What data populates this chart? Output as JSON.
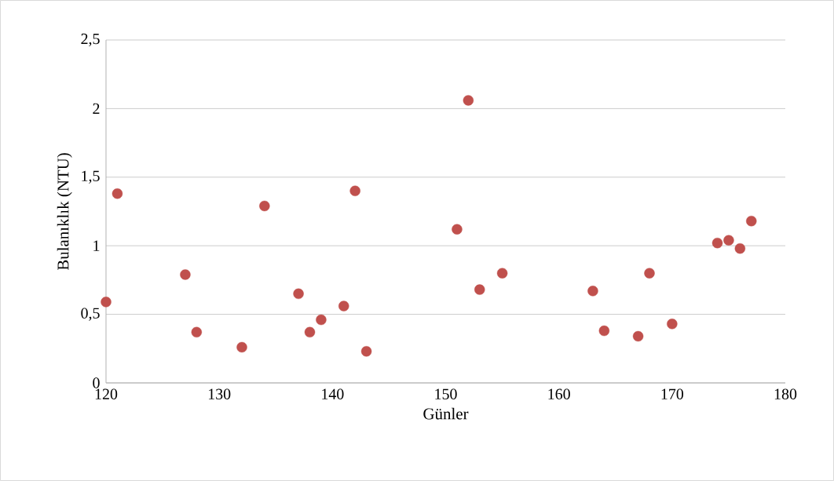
{
  "chart_data": {
    "type": "scatter",
    "xlabel": "Günler",
    "ylabel": "Bulanıklık (NTU)",
    "x": [
      120,
      121,
      127,
      128,
      132,
      134,
      137,
      138,
      139,
      141,
      142,
      143,
      151,
      152,
      153,
      155,
      163,
      164,
      167,
      168,
      170,
      174,
      175,
      176,
      177
    ],
    "values": [
      0.59,
      1.38,
      0.79,
      0.37,
      0.26,
      1.29,
      0.65,
      0.37,
      0.46,
      0.56,
      1.4,
      0.23,
      1.12,
      2.06,
      0.68,
      0.8,
      0.67,
      0.38,
      0.34,
      0.8,
      0.43,
      1.02,
      1.04,
      0.98,
      1.18
    ],
    "color": "#c0504d",
    "marker": "circle",
    "xlim": [
      120,
      180
    ],
    "xticks": [
      120,
      130,
      140,
      150,
      160,
      170,
      180
    ],
    "ylim": [
      0,
      2.5
    ],
    "yticks": [
      0,
      {
        "value": 0.5,
        "label": "0,5"
      },
      1,
      {
        "value": 1.5,
        "label": "1,5"
      },
      2,
      {
        "value": 2.5,
        "label": "2,5"
      }
    ],
    "grid": "y"
  }
}
